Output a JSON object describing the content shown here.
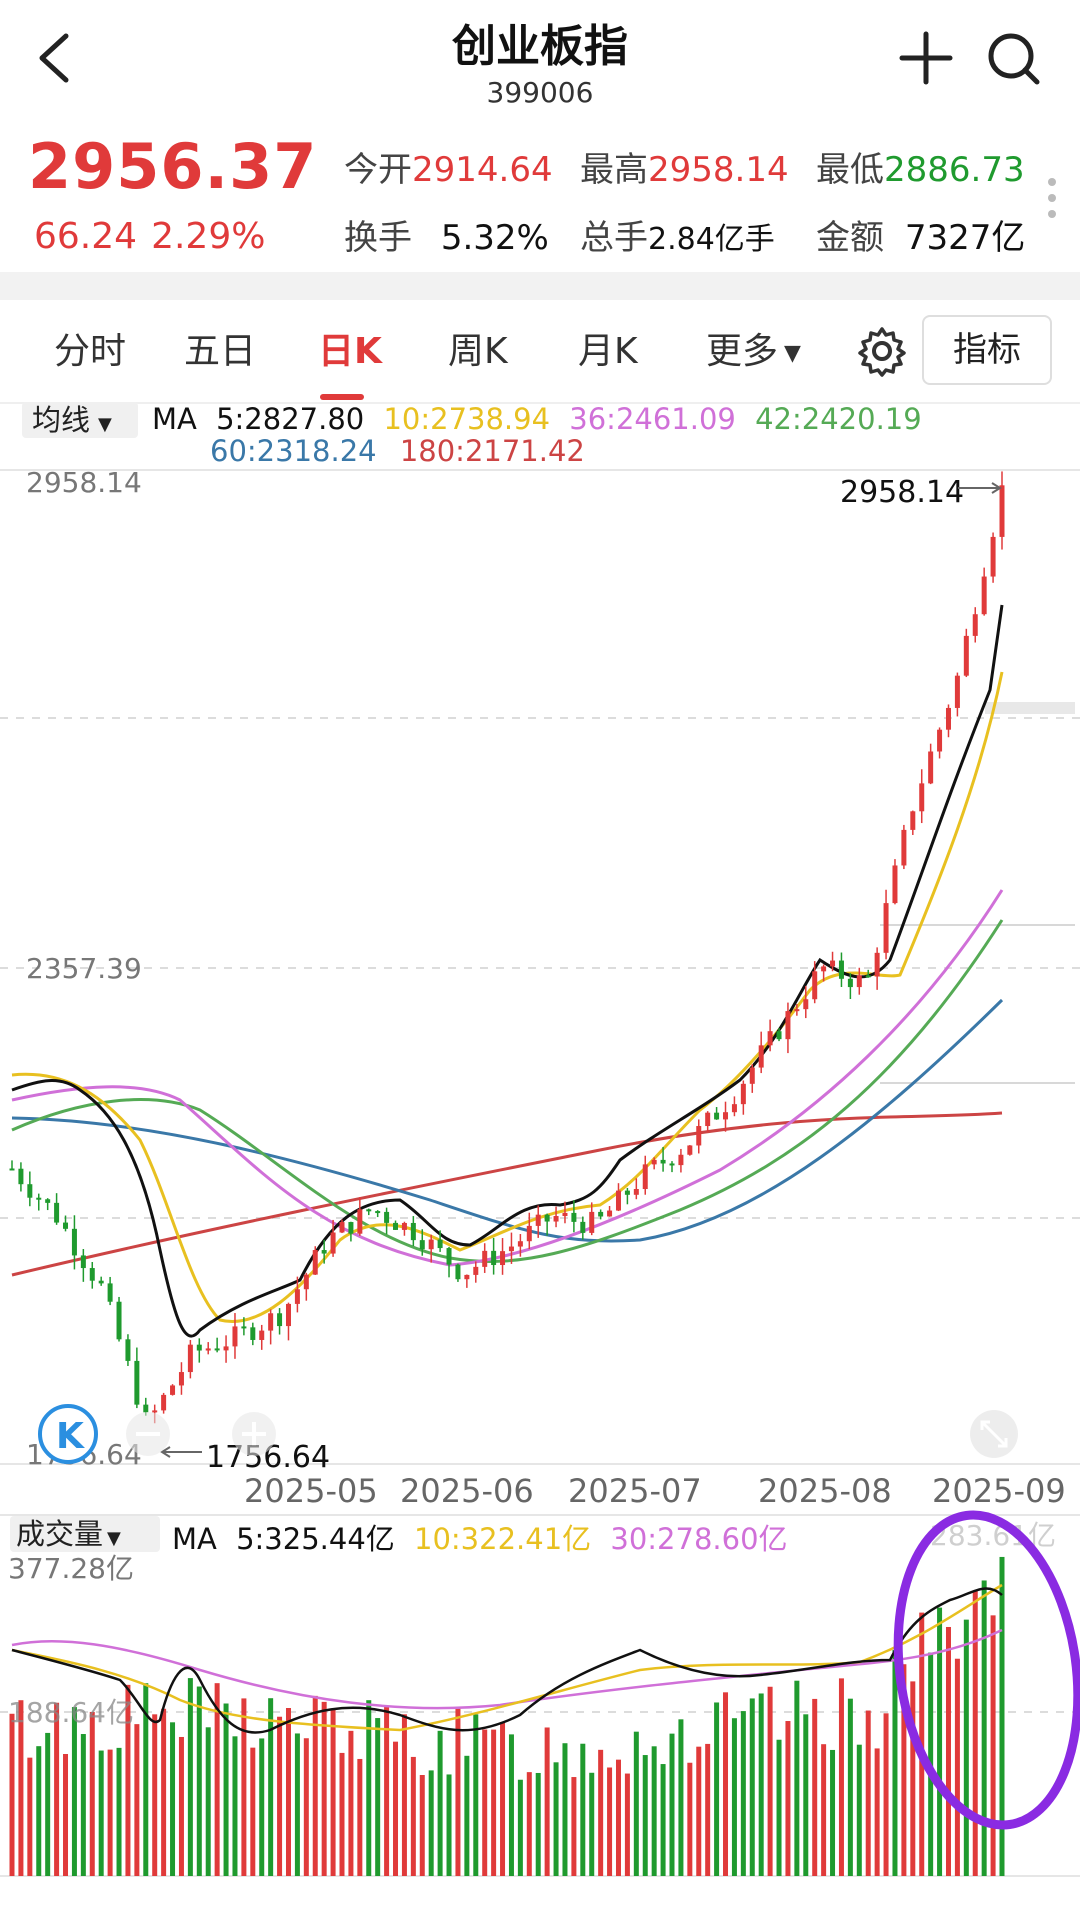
{
  "header": {
    "title": "创业板指",
    "code": "399006"
  },
  "quote": {
    "price": "2956.37",
    "change": "66.24",
    "change_pct": "2.29%",
    "open_label": "今开",
    "open": "2914.64",
    "high_label": "最高",
    "high": "2958.14",
    "low_label": "最低",
    "low": "2886.73",
    "turnover_label": "换手",
    "turnover": "5.32%",
    "volume_label": "总手",
    "volume": "2.84亿手",
    "amount_label": "金额",
    "amount": "7327亿"
  },
  "tabs": [
    {
      "label": "分时"
    },
    {
      "label": "五日"
    },
    {
      "label": "日K",
      "active": true
    },
    {
      "label": "周K"
    },
    {
      "label": "月K"
    },
    {
      "label": "更多"
    }
  ],
  "indicator_button": "指标",
  "ma_legend": {
    "selector": "均线",
    "prefix": "MA",
    "ma5": "5:2827.80",
    "ma10": "10:2738.94",
    "ma36": "36:2461.09",
    "ma42": "42:2420.19",
    "ma60": "60:2318.24",
    "ma180": "180:2171.42"
  },
  "price_axis": {
    "top": "2958.14",
    "mid": "2357.39",
    "bottom": "1756.64"
  },
  "annotations": {
    "high_marker": "2958.14",
    "low_marker": "1756.64"
  },
  "x_axis": [
    "2025-05",
    "2025-06",
    "2025-07",
    "2025-08",
    "2025-09"
  ],
  "volume_legend": {
    "selector": "成交量",
    "prefix": "MA",
    "ma5": "5:325.44亿",
    "ma10": "10:322.41亿",
    "ma30": "30:278.60亿"
  },
  "volume_axis": {
    "top": "377.28亿",
    "mid": "188.64亿",
    "ghost": "283.61亿"
  },
  "colors": {
    "up": "#e03a3a",
    "down": "#1f9a2e",
    "ma5": "#111111",
    "ma10": "#e8c020",
    "ma36": "#d070d8",
    "ma42": "#55aa55",
    "ma60": "#3a78a8",
    "ma180": "#cc4444",
    "highlight_circle": "#8a2be2"
  },
  "chart_data": {
    "type": "candlestick",
    "x_ticks": [
      "2025-05",
      "2025-06",
      "2025-07",
      "2025-08",
      "2025-09"
    ],
    "ylim": [
      1756.64,
      2958.14
    ],
    "close_trend": [
      [
        "2025-04-10",
        2110
      ],
      [
        "2025-04-18",
        2050
      ],
      [
        "2025-04-25",
        1960
      ],
      [
        "2025-05-01",
        1790
      ],
      [
        "2025-05-09",
        1880
      ],
      [
        "2025-05-16",
        1900
      ],
      [
        "2025-05-23",
        1930
      ],
      [
        "2025-05-30",
        2020
      ],
      [
        "2025-06-06",
        2060
      ],
      [
        "2025-06-13",
        2030
      ],
      [
        "2025-06-20",
        1980
      ],
      [
        "2025-06-27",
        2010
      ],
      [
        "2025-07-04",
        2050
      ],
      [
        "2025-07-11",
        2040
      ],
      [
        "2025-07-18",
        2100
      ],
      [
        "2025-07-25",
        2140
      ],
      [
        "2025-08-01",
        2200
      ],
      [
        "2025-08-08",
        2280
      ],
      [
        "2025-08-15",
        2360
      ],
      [
        "2025-08-22",
        2340
      ],
      [
        "2025-08-29",
        2560
      ],
      [
        "2025-09-05",
        2720
      ],
      [
        "2025-09-12",
        2956.37
      ]
    ],
    "moving_averages": [
      {
        "name": "MA5",
        "last": 2827.8
      },
      {
        "name": "MA10",
        "last": 2738.94
      },
      {
        "name": "MA36",
        "last": 2461.09
      },
      {
        "name": "MA42",
        "last": 2420.19
      },
      {
        "name": "MA60",
        "last": 2318.24
      },
      {
        "name": "MA180",
        "last": 2171.42
      }
    ],
    "volume": {
      "unit": "亿",
      "ylim": [
        0,
        377.28
      ],
      "ma5": 325.44,
      "ma10": 322.41,
      "ma30": 278.6
    }
  }
}
